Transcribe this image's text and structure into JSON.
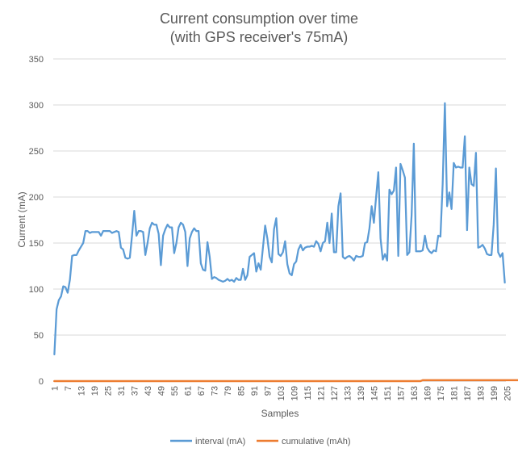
{
  "chart_data": {
    "type": "line",
    "title": "Current consumption over time",
    "subtitle": "(with GPS receiver's 75mA)",
    "xlabel": "Samples",
    "ylabel": "Current (mA)",
    "ylim": [
      0,
      350
    ],
    "yticks": [
      0,
      50,
      100,
      150,
      200,
      250,
      300,
      350
    ],
    "x_tick_labels": [
      "1",
      "7",
      "13",
      "19",
      "25",
      "31",
      "37",
      "43",
      "49",
      "55",
      "61",
      "67",
      "73",
      "79",
      "85",
      "91",
      "97",
      "103",
      "109",
      "115",
      "121",
      "127",
      "133",
      "139",
      "145",
      "151",
      "157",
      "163",
      "169",
      "175",
      "181",
      "187",
      "193",
      "199",
      "205"
    ],
    "grid": true,
    "legend_position": "bottom",
    "series": [
      {
        "name": "interval (mA)",
        "color": "#5b9bd5",
        "values": [
          29,
          78,
          88,
          92,
          103,
          102,
          96,
          110,
          136,
          137,
          137,
          142,
          146,
          150,
          163,
          163,
          161,
          162,
          162,
          162,
          162,
          158,
          163,
          163,
          163,
          163,
          161,
          162,
          163,
          162,
          145,
          143,
          134,
          133,
          134,
          158,
          185,
          158,
          163,
          163,
          162,
          137,
          150,
          166,
          172,
          170,
          170,
          160,
          126,
          158,
          165,
          170,
          167,
          167,
          139,
          150,
          167,
          172,
          170,
          162,
          125,
          155,
          162,
          166,
          163,
          163,
          128,
          121,
          120,
          151,
          135,
          111,
          113,
          112,
          110,
          109,
          108,
          109,
          111,
          109,
          110,
          108,
          112,
          110,
          110,
          122,
          110,
          115,
          135,
          137,
          139,
          119,
          128,
          121,
          145,
          169,
          155,
          135,
          129,
          165,
          177,
          138,
          136,
          140,
          152,
          127,
          117,
          115,
          127,
          130,
          143,
          148,
          142,
          145,
          146,
          146,
          147,
          146,
          152,
          149,
          141,
          150,
          152,
          172,
          150,
          182,
          140,
          140,
          190,
          204,
          135,
          133,
          135,
          136,
          134,
          131,
          136,
          135,
          135,
          136,
          150,
          151,
          166,
          190,
          172,
          200,
          227,
          155,
          132,
          138,
          131,
          208,
          203,
          207,
          232,
          136,
          236,
          229,
          221,
          137,
          140,
          180,
          258,
          141,
          141,
          141,
          142,
          158,
          145,
          141,
          139,
          142,
          141,
          158,
          157,
          214,
          302,
          190,
          205,
          187,
          237,
          232,
          233,
          232,
          232,
          266,
          164,
          232,
          214,
          212,
          248,
          145,
          146,
          148,
          144,
          138,
          137,
          137,
          170,
          231,
          140,
          135,
          139,
          107
        ],
        "x_start": 1
      },
      {
        "name": "cumulative (mAh)",
        "color": "#ed7d31",
        "values_note": "",
        "values": [
          0,
          0,
          0,
          0,
          0,
          0,
          0,
          0,
          0,
          0,
          0,
          0,
          0,
          0,
          0,
          0,
          0,
          0,
          0,
          0,
          0,
          0,
          0,
          0,
          0,
          0,
          0,
          0,
          0,
          0,
          0,
          0,
          0,
          0,
          0,
          0,
          0,
          0,
          0,
          0,
          0,
          0,
          0,
          0,
          0,
          0,
          0,
          0,
          0,
          0,
          0,
          0,
          0,
          0,
          0,
          0,
          0,
          0,
          0,
          0,
          0,
          0,
          0,
          0,
          0,
          0,
          0,
          0,
          0,
          0,
          0,
          0,
          0,
          0,
          0,
          0,
          0,
          0,
          0,
          0,
          0,
          0,
          0,
          0,
          0,
          0,
          0,
          0,
          0,
          0,
          0,
          0,
          0,
          0,
          0,
          0,
          0,
          0,
          0,
          0,
          0,
          0,
          0,
          0,
          0,
          0,
          0,
          0,
          0,
          0,
          0,
          0,
          0,
          0,
          0,
          0,
          0,
          0,
          0,
          0,
          0,
          0,
          0,
          0,
          0,
          0,
          0,
          0,
          0,
          0,
          0,
          0,
          0,
          0,
          0,
          0,
          0,
          0,
          0,
          0,
          0,
          0,
          0,
          0,
          0,
          0,
          0,
          0,
          0,
          0,
          0,
          0,
          0,
          0,
          0,
          0,
          0,
          0,
          0,
          0,
          0,
          0,
          0,
          0,
          0,
          0,
          1,
          1,
          1,
          1,
          1,
          1,
          1,
          1,
          1,
          1,
          1,
          1,
          1,
          1,
          1,
          1,
          1,
          1,
          1,
          1,
          1,
          1,
          1,
          1,
          1,
          1,
          1,
          1,
          1,
          1,
          1,
          1,
          1,
          1,
          1,
          1,
          1,
          1,
          1,
          1,
          1,
          1,
          1,
          1,
          1
        ],
        "x_start": 1
      }
    ]
  }
}
